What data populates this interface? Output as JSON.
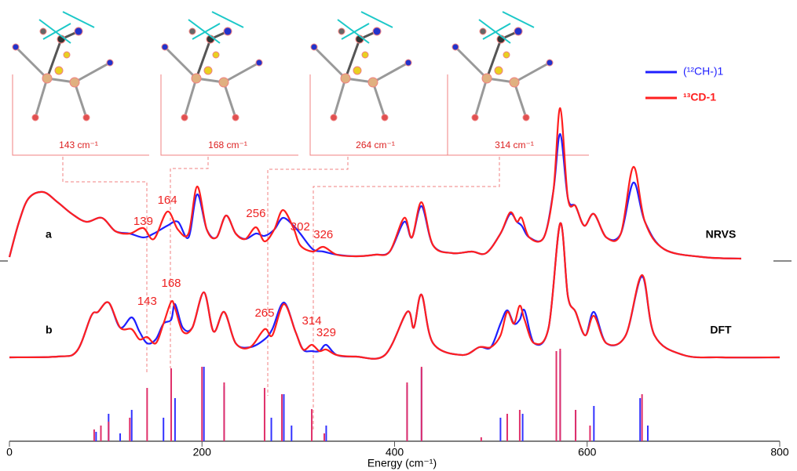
{
  "chart_data": [
    {
      "type": "line",
      "title": "NRVS",
      "panel_label": "a",
      "xlim": [
        0,
        800
      ],
      "ylim": [
        0,
        2.25
      ],
      "peak_labels": [
        139,
        164,
        256,
        302,
        326
      ],
      "x": [
        0,
        10,
        20,
        35,
        50,
        65,
        80,
        96,
        110,
        125,
        139,
        150,
        164,
        175,
        186,
        195,
        205,
        215,
        225,
        235,
        245,
        256,
        265,
        275,
        284,
        295,
        302,
        315,
        326,
        340,
        360,
        380,
        395,
        410,
        418,
        428,
        440,
        460,
        480,
        495,
        510,
        520,
        527,
        532,
        540,
        555,
        565,
        572,
        580,
        588,
        597,
        607,
        620,
        635,
        648,
        660,
        680,
        720,
        760
      ],
      "series": [
        {
          "name": "(¹²CH-)1",
          "color": "#1f1fff",
          "values": [
            0.05,
            0.5,
            0.8,
            0.88,
            0.75,
            0.6,
            0.5,
            0.55,
            0.38,
            0.35,
            0.3,
            0.35,
            0.45,
            0.5,
            0.3,
            0.85,
            0.4,
            0.3,
            0.58,
            0.35,
            0.28,
            0.35,
            0.32,
            0.4,
            0.55,
            0.45,
            0.35,
            0.15,
            0.12,
            0.08,
            0.06,
            0.08,
            0.12,
            0.5,
            0.3,
            0.7,
            0.2,
            0.1,
            0.12,
            0.1,
            0.35,
            0.6,
            0.5,
            0.45,
            0.3,
            0.3,
            0.9,
            1.62,
            0.8,
            0.7,
            0.45,
            0.6,
            0.3,
            0.35,
            1.0,
            0.5,
            0.15,
            0.05,
            0.03
          ]
        },
        {
          "name": "¹³CD-1",
          "color": "#ff1f1f",
          "values": [
            0.05,
            0.5,
            0.8,
            0.88,
            0.75,
            0.6,
            0.5,
            0.55,
            0.38,
            0.35,
            0.42,
            0.28,
            0.63,
            0.4,
            0.35,
            0.95,
            0.4,
            0.3,
            0.58,
            0.35,
            0.28,
            0.43,
            0.25,
            0.4,
            0.65,
            0.42,
            0.2,
            0.12,
            0.18,
            0.08,
            0.06,
            0.08,
            0.12,
            0.55,
            0.3,
            0.75,
            0.2,
            0.1,
            0.12,
            0.1,
            0.35,
            0.62,
            0.5,
            0.55,
            0.3,
            0.3,
            0.9,
            1.95,
            0.8,
            0.7,
            0.45,
            0.6,
            0.3,
            0.35,
            1.2,
            0.5,
            0.15,
            0.05,
            0.03
          ]
        }
      ]
    },
    {
      "type": "line",
      "title": "DFT",
      "panel_label": "b",
      "xlim": [
        0,
        800
      ],
      "ylim": [
        0,
        1.8
      ],
      "peak_labels": [
        143,
        168,
        265,
        314,
        329
      ],
      "x": [
        0,
        50,
        70,
        85,
        92,
        103,
        115,
        127,
        135,
        143,
        152,
        160,
        168,
        172,
        180,
        190,
        202,
        212,
        223,
        235,
        250,
        265,
        273,
        285,
        297,
        305,
        314,
        322,
        329,
        340,
        360,
        390,
        413,
        420,
        428,
        440,
        470,
        488,
        500,
        510,
        517,
        524,
        530,
        535,
        545,
        560,
        572,
        580,
        588,
        598,
        607,
        620,
        640,
        657,
        670,
        700,
        740,
        800
      ],
      "series": [
        {
          "name": "(¹²CH-)1",
          "color": "#1f1fff",
          "values": [
            0.02,
            0.03,
            0.1,
            0.55,
            0.6,
            0.72,
            0.4,
            0.53,
            0.35,
            0.2,
            0.25,
            0.45,
            0.5,
            0.7,
            0.4,
            0.4,
            0.85,
            0.35,
            0.6,
            0.2,
            0.15,
            0.25,
            0.38,
            0.72,
            0.35,
            0.12,
            0.1,
            0.1,
            0.18,
            0.05,
            0.03,
            0.05,
            0.6,
            0.4,
            0.82,
            0.2,
            0.05,
            0.15,
            0.15,
            0.45,
            0.62,
            0.45,
            0.5,
            0.62,
            0.2,
            0.4,
            1.73,
            0.8,
            0.6,
            0.3,
            0.6,
            0.2,
            0.3,
            1.05,
            0.3,
            0.05,
            0.02,
            0.02
          ]
        },
        {
          "name": "¹³CD-1",
          "color": "#ff1f1f",
          "values": [
            0.02,
            0.03,
            0.1,
            0.55,
            0.6,
            0.72,
            0.4,
            0.38,
            0.25,
            0.28,
            0.2,
            0.45,
            0.73,
            0.65,
            0.35,
            0.4,
            0.85,
            0.35,
            0.6,
            0.2,
            0.15,
            0.38,
            0.3,
            0.7,
            0.35,
            0.12,
            0.18,
            0.1,
            0.12,
            0.05,
            0.03,
            0.05,
            0.6,
            0.4,
            0.82,
            0.2,
            0.05,
            0.15,
            0.15,
            0.3,
            0.6,
            0.45,
            0.68,
            0.5,
            0.2,
            0.4,
            1.73,
            0.8,
            0.6,
            0.3,
            0.55,
            0.2,
            0.3,
            1.07,
            0.3,
            0.05,
            0.02,
            0.02
          ]
        }
      ]
    },
    {
      "type": "stick",
      "xlim": [
        0,
        800
      ],
      "ylim": [
        0,
        1.2
      ],
      "x_label": "Energy (cm⁻¹)",
      "xticks": [
        0,
        200,
        400,
        600,
        800
      ],
      "series": [
        {
          "name": "(¹²CH-)1",
          "color": "#3333ff",
          "x": [
            90,
            103,
            115,
            127,
            160,
            172,
            202,
            223,
            272,
            285,
            293,
            329,
            413,
            428,
            510,
            533,
            572,
            588,
            607,
            655,
            663
          ],
          "values": [
            0.12,
            0.35,
            0.1,
            0.4,
            0.3,
            0.55,
            0.95,
            0.7,
            0.3,
            0.6,
            0.2,
            0.2,
            0.72,
            0.93,
            0.3,
            0.35,
            1.15,
            0.4,
            0.45,
            0.55,
            0.2
          ]
        },
        {
          "name": "¹³CD-1",
          "color": "#e0306a",
          "x": [
            88,
            95,
            103,
            125,
            143,
            168,
            200,
            223,
            265,
            283,
            314,
            327,
            413,
            428,
            490,
            517,
            530,
            568,
            572,
            588,
            603,
            657
          ],
          "values": [
            0.15,
            0.2,
            0.25,
            0.3,
            0.68,
            0.93,
            0.95,
            0.75,
            0.68,
            0.6,
            0.41,
            0.1,
            0.75,
            0.95,
            0.05,
            0.35,
            0.4,
            1.15,
            1.18,
            0.4,
            0.2,
            0.6
          ]
        }
      ]
    }
  ],
  "structures": [
    {
      "label": "143 cm⁻¹"
    },
    {
      "label": "168 cm⁻¹"
    },
    {
      "label": "264 cm⁻¹"
    },
    {
      "label": "314 cm⁻¹"
    }
  ]
}
